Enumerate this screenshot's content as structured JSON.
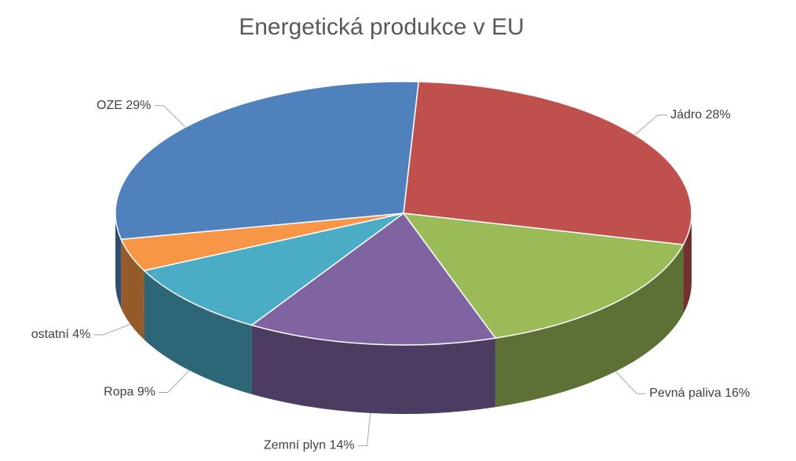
{
  "chart_data": {
    "type": "pie",
    "title": "Energetická produkce v EU",
    "categories": [
      "Jádro",
      "Pevná paliva",
      "Zemní plyn",
      "Ropa",
      "ostatní",
      "OZE"
    ],
    "values": [
      28,
      16,
      14,
      9,
      4,
      29
    ],
    "value_labels": [
      "28%",
      "16%",
      "14%",
      "9%",
      "4%",
      "29%"
    ],
    "colors": [
      "#c0504d",
      "#9bbb59",
      "#8064a2",
      "#4bacc6",
      "#f79646",
      "#4f81bd"
    ]
  }
}
